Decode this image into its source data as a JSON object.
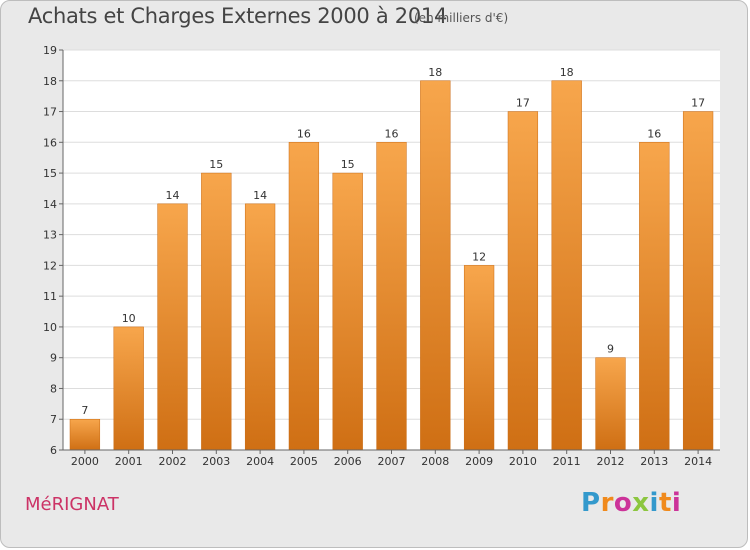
{
  "header": {
    "title": "Achats et Charges Externes 2000 à 2014",
    "subtitle": "(en milliers d'€)"
  },
  "footer": {
    "city": "MéRIGNAT",
    "brand_letters": [
      "P",
      "r",
      "o",
      "x",
      "i",
      "t",
      "i"
    ],
    "brand_colors": [
      "#3399cc",
      "#f08a1c",
      "#cc3399",
      "#8cc63f",
      "#3399cc",
      "#f08a1c",
      "#cc3399"
    ]
  },
  "chart_data": {
    "type": "bar",
    "categories": [
      "2000",
      "2001",
      "2002",
      "2003",
      "2004",
      "2005",
      "2006",
      "2007",
      "2008",
      "2009",
      "2010",
      "2011",
      "2012",
      "2013",
      "2014"
    ],
    "values": [
      7,
      10,
      14,
      15,
      14,
      16,
      15,
      16,
      18,
      12,
      17,
      18,
      9,
      16,
      17
    ],
    "title": "Achats et Charges Externes 2000 à 2014",
    "xlabel": "",
    "ylabel": "",
    "ylim": [
      6,
      19
    ],
    "yticks": [
      6,
      7,
      8,
      9,
      10,
      11,
      12,
      13,
      14,
      15,
      16,
      17,
      18,
      19
    ],
    "grid": true,
    "colors": {
      "bar_top": "#f7a64c",
      "bar_bottom": "#cf6f14",
      "plot_bg": "#ffffff",
      "grid": "#dddddd"
    }
  }
}
